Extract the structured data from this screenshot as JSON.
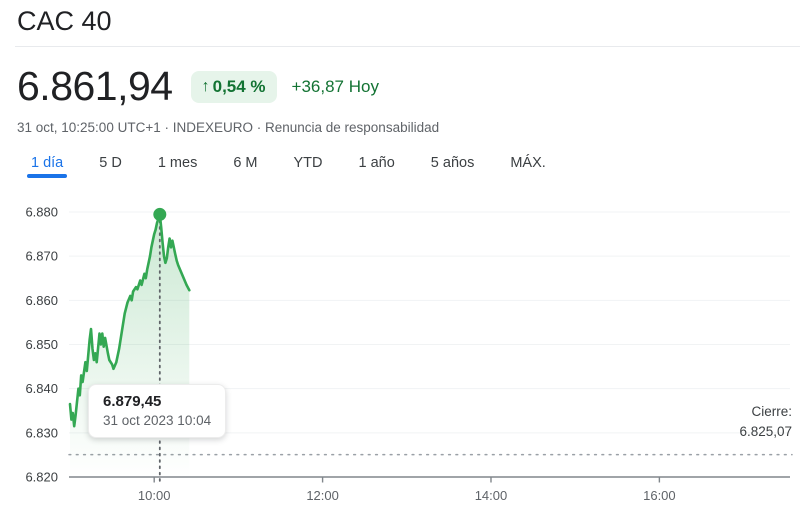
{
  "header": {
    "title": "CAC 40",
    "price": "6.861,94",
    "change_arrow": "↑",
    "change_percent": "0,54 %",
    "change_absolute": "+36,87 Hoy",
    "meta_info": "31 oct, 10:25:00 UTC+1 · INDEXEURO · ",
    "meta_disclaimer": "Renuncia de responsabilidad"
  },
  "tabs": [
    {
      "label": "1 día",
      "active": true
    },
    {
      "label": "5 D",
      "active": false
    },
    {
      "label": "1 mes",
      "active": false
    },
    {
      "label": "6 M",
      "active": false
    },
    {
      "label": "YTD",
      "active": false
    },
    {
      "label": "1 año",
      "active": false
    },
    {
      "label": "5 años",
      "active": false
    },
    {
      "label": "MÁX.",
      "active": false
    }
  ],
  "colors": {
    "up_text_green": "#137333",
    "badge_bg_green": "#e6f4ea",
    "line_green": "#34a853",
    "active_tab_blue": "#1a73e8",
    "axis_text": "#3c4043",
    "grid_line": "#f1f3f4"
  },
  "chart_data": {
    "type": "area",
    "x_unit": "minutes after 09:00",
    "points": [
      [
        0,
        6836.5
      ],
      [
        1,
        6833
      ],
      [
        2,
        6834.5
      ],
      [
        3,
        6831.5
      ],
      [
        4,
        6834
      ],
      [
        6,
        6840
      ],
      [
        7,
        6838.5
      ],
      [
        8,
        6843
      ],
      [
        9,
        6841.5
      ],
      [
        11,
        6846
      ],
      [
        12,
        6844
      ],
      [
        14,
        6851
      ],
      [
        15,
        6853.5
      ],
      [
        16,
        6849
      ],
      [
        17,
        6846.5
      ],
      [
        18,
        6848
      ],
      [
        19,
        6846
      ],
      [
        21,
        6852.5
      ],
      [
        22,
        6850
      ],
      [
        23,
        6852.5
      ],
      [
        24,
        6849.5
      ],
      [
        25,
        6851.5
      ],
      [
        27,
        6848
      ],
      [
        28,
        6846.5
      ],
      [
        30,
        6845.5
      ],
      [
        31,
        6844.5
      ],
      [
        33,
        6846
      ],
      [
        35,
        6849
      ],
      [
        37,
        6853
      ],
      [
        39,
        6857
      ],
      [
        41,
        6859.5
      ],
      [
        43,
        6861
      ],
      [
        44,
        6860
      ],
      [
        45,
        6862
      ],
      [
        47,
        6863
      ],
      [
        48,
        6862.5
      ],
      [
        50,
        6864.5
      ],
      [
        51,
        6863.5
      ],
      [
        53,
        6866
      ],
      [
        54,
        6865
      ],
      [
        55,
        6867
      ],
      [
        56,
        6868.5
      ],
      [
        57,
        6870
      ],
      [
        58,
        6872
      ],
      [
        59,
        6873.5
      ],
      [
        60,
        6875
      ],
      [
        61,
        6876
      ],
      [
        62,
        6877.5
      ],
      [
        63,
        6878.5
      ],
      [
        64,
        6879.45
      ],
      [
        65,
        6876.5
      ],
      [
        66,
        6873
      ],
      [
        67,
        6870
      ],
      [
        68,
        6868.5
      ],
      [
        69,
        6869.5
      ],
      [
        70,
        6872
      ],
      [
        71,
        6874
      ],
      [
        72,
        6872
      ],
      [
        73,
        6873.5
      ],
      [
        74,
        6872
      ],
      [
        75,
        6870.5
      ],
      [
        76,
        6869
      ],
      [
        77,
        6868
      ],
      [
        79,
        6866.5
      ],
      [
        81,
        6865
      ],
      [
        83,
        6863.5
      ],
      [
        85,
        6862.3
      ]
    ],
    "y_ticks": [
      {
        "label": "6.880",
        "value": 6880
      },
      {
        "label": "6.870",
        "value": 6870
      },
      {
        "label": "6.860",
        "value": 6860
      },
      {
        "label": "6.850",
        "value": 6850
      },
      {
        "label": "6.840",
        "value": 6840
      },
      {
        "label": "6.830",
        "value": 6830
      },
      {
        "label": "6.820",
        "value": 6820
      }
    ],
    "x_ticks": [
      {
        "label": "10:00",
        "minute": 60
      },
      {
        "label": "12:00",
        "minute": 180
      },
      {
        "label": "14:00",
        "minute": 300
      },
      {
        "label": "16:00",
        "minute": 420
      }
    ],
    "ylim": [
      6820,
      6880
    ],
    "previous_close": {
      "label": "Cierre:",
      "value_label": "6.825,07",
      "value": 6825.07
    },
    "marker": {
      "minute": 64,
      "value": 6879.45,
      "tooltip_price": "6.879,45",
      "tooltip_date": "31 oct 2023 10:04"
    },
    "line_color": "#34a853"
  }
}
